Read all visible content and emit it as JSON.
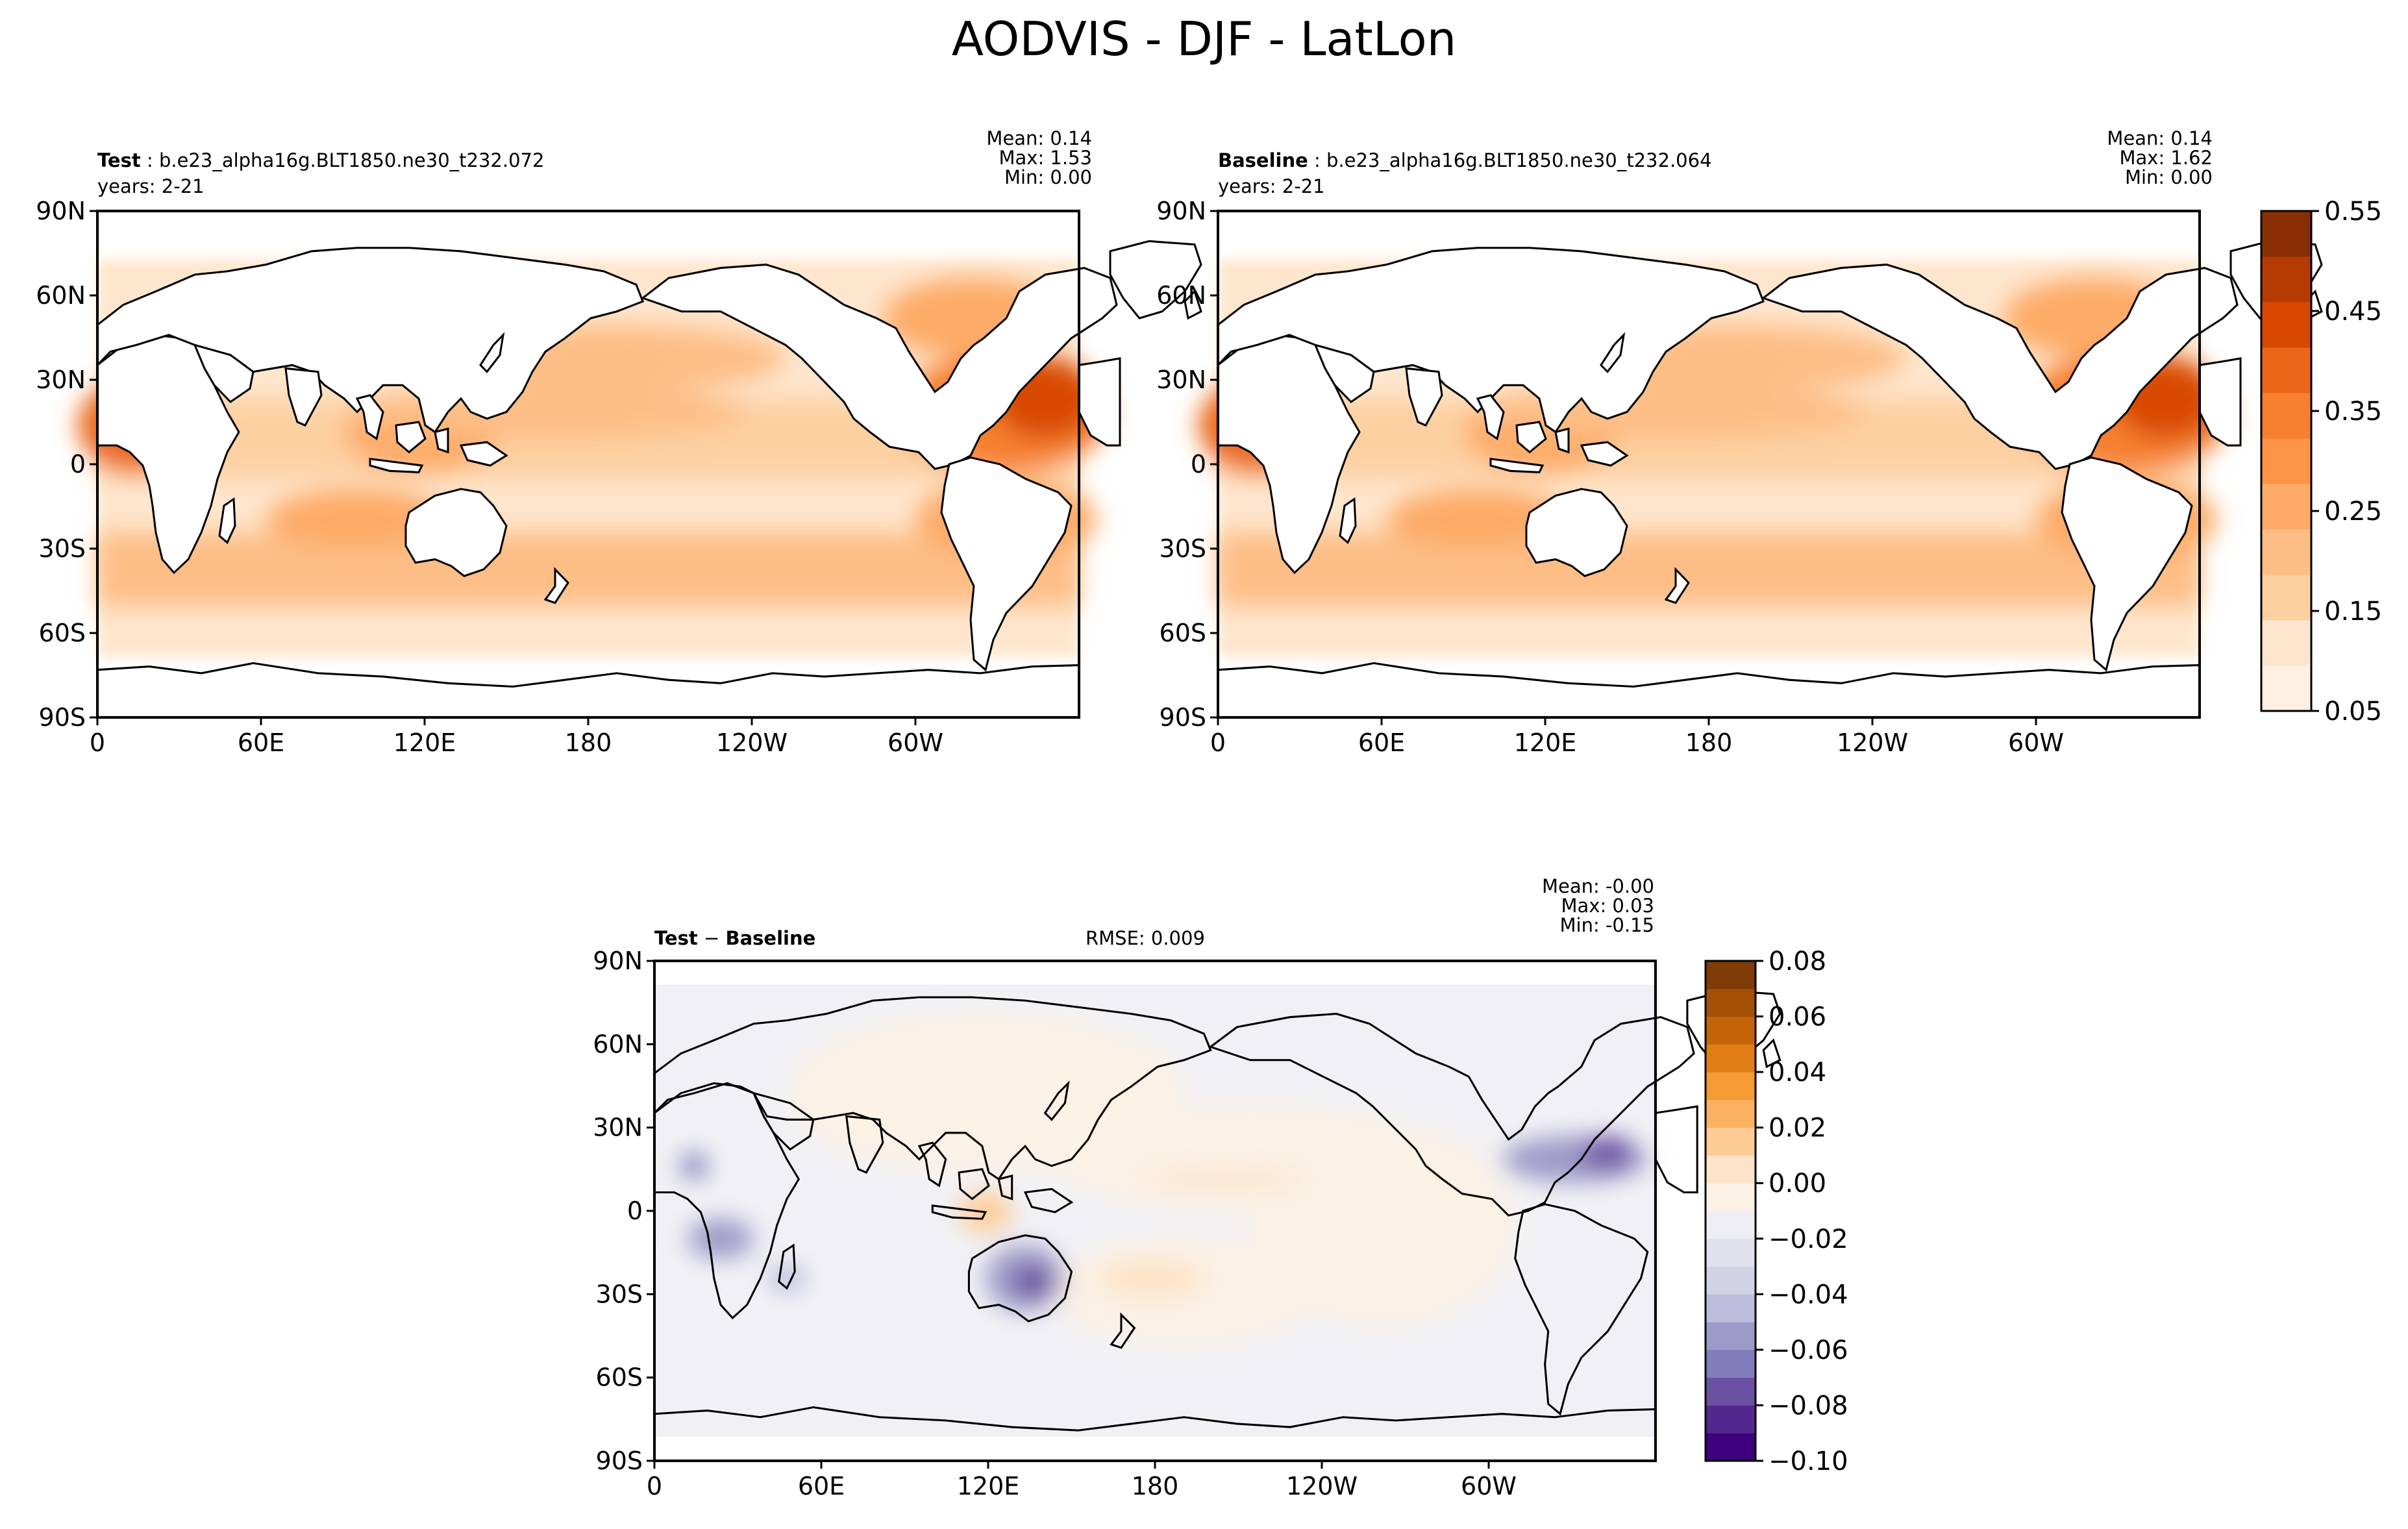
{
  "title": "AODVIS - DJF - LatLon",
  "panels": [
    {
      "id": "test",
      "label": "Test",
      "case_name": "b.e23_alpha16g.BLT1850.ne30_t232.072",
      "years": "years: 2-21",
      "stats": {
        "mean": "Mean:  0.14",
        "max": "Max:  1.53",
        "min": "Min:  0.00"
      }
    },
    {
      "id": "baseline",
      "label": "Baseline",
      "case_name": "b.e23_alpha16g.BLT1850.ne30_t232.064",
      "years": "years: 2-21",
      "stats": {
        "mean": "Mean:  0.14",
        "max": "Max:  1.62",
        "min": "Min:  0.00"
      }
    },
    {
      "id": "diff",
      "label_a": "Test",
      "minus": "−",
      "label_b": "Baseline",
      "rmse": "RMSE: 0.009",
      "stats": {
        "mean": "Mean: -0.00",
        "max": "Max:  0.03",
        "min": "Min: -0.15"
      }
    }
  ],
  "axes": {
    "lat_ticks": [
      "90N",
      "60N",
      "30N",
      "0",
      "30S",
      "60S",
      "90S"
    ],
    "lon_ticks": [
      "0",
      "60E",
      "120E",
      "180",
      "120W",
      "60W"
    ]
  },
  "colorbars": {
    "main": {
      "ticks": [
        "0.55",
        "0.45",
        "0.35",
        "0.25",
        "0.15",
        "0.05"
      ],
      "levels": 10,
      "colors": [
        "#fff0e3",
        "#fee6ce",
        "#fdd0a2",
        "#fdbe86",
        "#fdab67",
        "#fd9446",
        "#f6802f",
        "#eb6619",
        "#d84801",
        "#b53b02",
        "#8a2e05"
      ]
    },
    "diff": {
      "ticks": [
        "0.08",
        "0.06",
        "0.04",
        "0.02",
        "0.00",
        "−0.02",
        "−0.04",
        "−0.06",
        "−0.08",
        "−0.10"
      ],
      "colors": [
        "#3f007d",
        "#54278f",
        "#6a51a3",
        "#807dba",
        "#9e9ac8",
        "#bcbddc",
        "#d2d2e6",
        "#e1e1ee",
        "#eeeef4",
        "#fbf1e5",
        "#fde3c8",
        "#fdcc95",
        "#fbb260",
        "#f59a34",
        "#e07e15",
        "#c46409",
        "#a35005",
        "#7f3b08"
      ]
    },
    "field_colors": {
      "land": "#ffffff",
      "diff_ocean": "#f1f1f5",
      "diff_neutral": "#fbf1e5"
    }
  }
}
